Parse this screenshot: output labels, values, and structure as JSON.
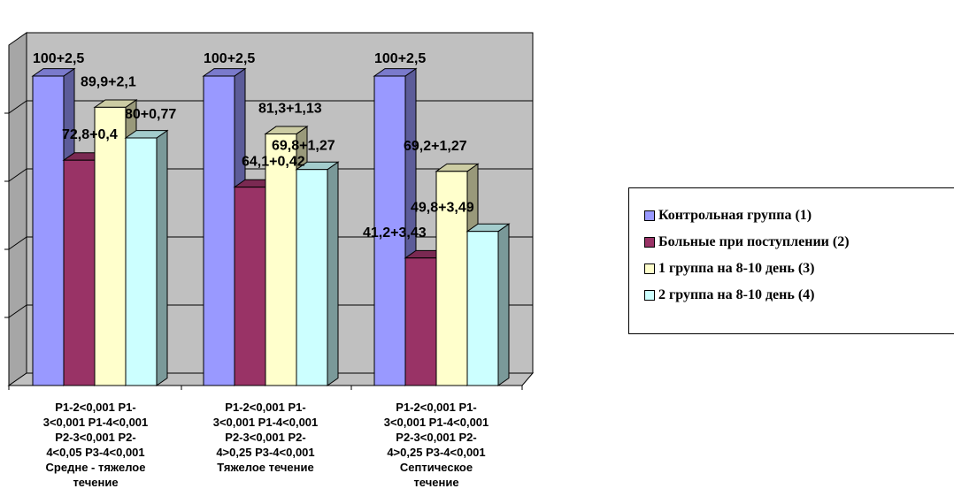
{
  "chart_data": {
    "type": "bar",
    "ylim": [
      0,
      110
    ],
    "grid": true,
    "legend_position": "right",
    "categories": [
      "P1-2<0,001 P1-3<0,001 P1-4<0,001 P2-3<0,001 P2-4<0,05 P3-4<0,001 Средне - тяжелое течение",
      "P1-2<0,001 P1-3<0,001 P1-4<0,001 P2-3<0,001 P2-4>0,25 P3-4<0,001 Тяжелое течение",
      "P1-2<0,001 P1-3<0,001 P1-4<0,001 P2-3<0,001 P2-4>0,25 P3-4<0,001 Септическое течение"
    ],
    "category_lines": [
      [
        "P1-2<0,001 P1-",
        "3<0,001 P1-4<0,001",
        "P2-3<0,001 P2-",
        "4<0,05 P3-4<0,001",
        "Средне - тяжелое",
        "течение"
      ],
      [
        "P1-2<0,001 P1-",
        "3<0,001 P1-4<0,001",
        "P2-3<0,001 P2-",
        "4>0,25 P3-4<0,001",
        "Тяжелое течение"
      ],
      [
        "P1-2<0,001 P1-",
        "3<0,001 P1-4<0,001",
        "P2-3<0,001 P2-",
        "4>0,25 P3-4<0,001",
        "Септическое",
        "течение"
      ]
    ],
    "series": [
      {
        "name": "Контрольная группа (1)",
        "color": "#9999ff",
        "values": [
          100,
          100,
          100
        ],
        "labels": [
          "100+2,5",
          "100+2,5",
          "100+2,5"
        ]
      },
      {
        "name": "Больные при поступлении (2)",
        "color": "#993366",
        "values": [
          72.8,
          64.1,
          41.2
        ],
        "labels": [
          "72,8+0,4",
          "64,1+0,42",
          "41,2+3,43"
        ]
      },
      {
        "name": "1 группа на 8-10 день (3)",
        "color": "#ffffcc",
        "values": [
          89.9,
          81.3,
          69.2
        ],
        "labels": [
          "89,9+2,1",
          "81,3+1,13",
          "69,2+1,27"
        ]
      },
      {
        "name": "2 группа на 8-10 день (4)",
        "color": "#ccffff",
        "values": [
          80,
          69.8,
          49.8
        ],
        "labels": [
          "80+0,77",
          "69,8+1,27",
          "49,8+3,49"
        ]
      }
    ]
  }
}
